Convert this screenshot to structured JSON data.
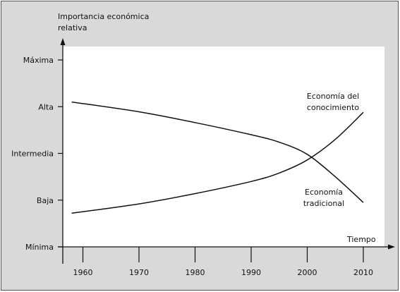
{
  "colors": {
    "background": "#d9d9d9",
    "plot_area": "#ffffff",
    "line": "#111111"
  },
  "chart_data": {
    "type": "line",
    "title": "",
    "ylabel_line1": "Importancia económica",
    "ylabel_line2": "relativa",
    "xlabel": "Tiempo",
    "x_ticks": [
      1960,
      1970,
      1980,
      1990,
      2000,
      2010
    ],
    "xlim": [
      1955,
      2015
    ],
    "y_levels": [
      "Mínima",
      "Baja",
      "Intermedia",
      "Alta",
      "Máxima"
    ],
    "ylim": [
      0,
      4
    ],
    "grid": false,
    "series": [
      {
        "name_line1": "Economía del",
        "name_line2": "conocimiento",
        "x": [
          1958,
          1970,
          1980,
          1990,
          1995,
          2000,
          2005,
          2010
        ],
        "y": [
          0.72,
          0.92,
          1.14,
          1.4,
          1.58,
          1.86,
          2.3,
          2.88
        ]
      },
      {
        "name_line1": "Economía",
        "name_line2": "tradicional",
        "x": [
          1958,
          1970,
          1980,
          1990,
          1995,
          2000,
          2005,
          2010
        ],
        "y": [
          3.1,
          2.89,
          2.66,
          2.4,
          2.24,
          1.98,
          1.5,
          0.95
        ]
      }
    ]
  }
}
